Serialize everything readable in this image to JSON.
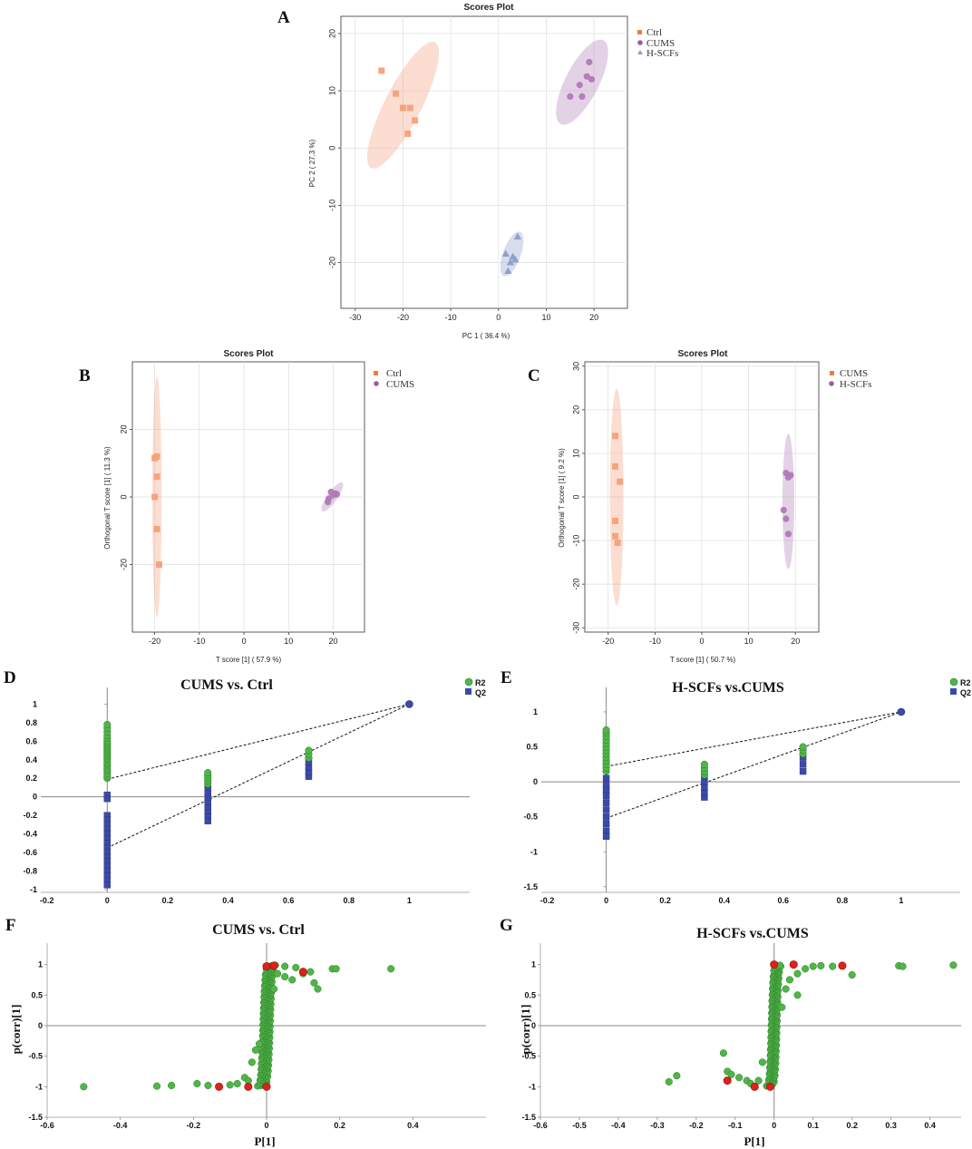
{
  "colors": {
    "ctrl": "#f4a07a",
    "cums": "#b07ab6",
    "hscfs": "#8c9dcc",
    "r2": "#4fb648",
    "q2": "#3b4aa8",
    "highlight": "#e0201b"
  },
  "chart_data": [
    {
      "id": "A",
      "type": "scatter",
      "label": "A",
      "title": "Scores Plot",
      "xlabel": "PC 1 ( 36.4 %)",
      "ylabel": "PC 2 ( 27.3 %)",
      "xlim": [
        -33,
        27
      ],
      "ylim": [
        -28,
        23
      ],
      "xticks": [
        -30,
        -20,
        -10,
        0,
        10,
        20
      ],
      "yticks": [
        -20,
        -10,
        0,
        10,
        20
      ],
      "series": [
        {
          "name": "Ctrl",
          "marker": "square",
          "color": "#f4a07a",
          "x": [
            -24.5,
            -21.5,
            -20.0,
            -18.5,
            -17.5,
            -19.0
          ],
          "y": [
            13.5,
            9.5,
            7.0,
            7.0,
            4.8,
            2.5
          ],
          "ellipse": {
            "cx": -20.0,
            "cy": 7.5,
            "rx": 13.5,
            "ry": 3.5,
            "angle": -63
          }
        },
        {
          "name": "CUMS",
          "marker": "circle",
          "color": "#b07ab6",
          "x": [
            19.0,
            18.5,
            19.5,
            17.0,
            15.0,
            17.5
          ],
          "y": [
            15.0,
            12.5,
            12.0,
            11.0,
            9.0,
            9.0
          ],
          "ellipse": {
            "cx": 17.5,
            "cy": 11.5,
            "rx": 9.0,
            "ry": 3.2,
            "angle": -63
          }
        },
        {
          "name": "H-SCFs",
          "marker": "triangle",
          "color": "#8c9dcc",
          "x": [
            4.0,
            1.5,
            3.0,
            2.5,
            2.0,
            3.5
          ],
          "y": [
            -15.5,
            -18.5,
            -19.0,
            -20.0,
            -21.5,
            -19.5
          ],
          "ellipse": {
            "cx": 2.8,
            "cy": -18.5,
            "rx": 4.5,
            "ry": 1.7,
            "angle": -70
          }
        }
      ]
    },
    {
      "id": "B",
      "type": "scatter",
      "label": "B",
      "title": "Scores Plot",
      "xlabel": "T score [1] ( 57.9 %)",
      "ylabel": "Orthogonal T score [1] ( 11.3 %)",
      "xlim": [
        -25,
        27
      ],
      "ylim": [
        -40,
        40
      ],
      "xticks": [
        -20,
        -10,
        0,
        10,
        20
      ],
      "yticks": [
        -20,
        0,
        20
      ],
      "series": [
        {
          "name": "Ctrl",
          "marker": "square",
          "color": "#f4a07a",
          "x": [
            -19.5,
            -20.0,
            -19.5,
            -20.0,
            -19.5,
            -19.0
          ],
          "y": [
            12.0,
            11.5,
            6.0,
            0.0,
            -9.5,
            -20.0
          ],
          "ellipse": {
            "cx": -19.5,
            "cy": 0.0,
            "rx": 31.0,
            "ry": 1.2,
            "angle": -90
          }
        },
        {
          "name": "CUMS",
          "marker": "circle",
          "color": "#b07ab6",
          "x": [
            19.5,
            20.5,
            20.0,
            19.0,
            18.8,
            20.8
          ],
          "y": [
            1.5,
            1.0,
            0.5,
            -0.5,
            -1.5,
            0.8
          ],
          "ellipse": {
            "cx": 19.8,
            "cy": 0.0,
            "rx": 4.5,
            "ry": 1.3,
            "angle": -55
          }
        }
      ]
    },
    {
      "id": "C",
      "type": "scatter",
      "label": "C",
      "title": "Scores Plot",
      "xlabel": "T score [1] ( 50.7 %)",
      "ylabel": "Orthogonal T score [1] ( 9.2 %)",
      "xlim": [
        -25,
        25
      ],
      "ylim": [
        -31,
        31
      ],
      "xticks": [
        -20,
        -10,
        0,
        10,
        20
      ],
      "yticks": [
        -30,
        -20,
        -10,
        0,
        10,
        20,
        30
      ],
      "series": [
        {
          "name": "CUMS",
          "marker": "square",
          "color": "#f4a07a",
          "x": [
            -18.5,
            -18.5,
            -17.5,
            -18.5,
            -18.5,
            -18.0
          ],
          "y": [
            14.0,
            7.0,
            3.5,
            -5.5,
            -9.0,
            -10.5
          ],
          "ellipse": {
            "cx": -18.2,
            "cy": 0.0,
            "rx": 24.0,
            "ry": 1.5,
            "angle": -90
          }
        },
        {
          "name": "H-SCFs",
          "marker": "circle",
          "color": "#b07ab6",
          "x": [
            18.0,
            19.0,
            18.5,
            17.5,
            18.0,
            18.5
          ],
          "y": [
            5.5,
            5.0,
            4.5,
            -3.0,
            -5.0,
            -8.5
          ],
          "ellipse": {
            "cx": 18.5,
            "cy": -1.0,
            "rx": 15.0,
            "ry": 1.3,
            "angle": -90
          }
        }
      ]
    },
    {
      "id": "D",
      "type": "scatter",
      "label": "D",
      "title": "CUMS vs. Ctrl",
      "xlim": [
        -0.22,
        1.2
      ],
      "ylim": [
        -1.03,
        1.18
      ],
      "xticks": [
        -0.2,
        0,
        0.2,
        0.4,
        0.6,
        0.8,
        1
      ],
      "xtick_labels": [
        "-0.2",
        "0",
        "0.2",
        "0.4",
        "0.6",
        "0.8",
        "1"
      ],
      "yticks": [
        -1,
        -0.8,
        -0.6,
        -0.4,
        -0.2,
        0,
        0.2,
        0.4,
        0.6,
        0.8,
        1
      ],
      "ytick_labels": [
        "-1",
        "-0.8",
        "-0.6",
        "-0.4",
        "-0.2",
        "0",
        "0.2",
        "0.4",
        "0.6",
        "0.8",
        "1"
      ],
      "legend": [
        "R2",
        "Q2"
      ],
      "r2_points": [
        [
          0,
          0.2
        ],
        [
          0,
          0.22
        ],
        [
          0,
          0.25
        ],
        [
          0,
          0.28
        ],
        [
          0,
          0.3
        ],
        [
          0,
          0.33
        ],
        [
          0,
          0.35
        ],
        [
          0,
          0.37
        ],
        [
          0,
          0.4
        ],
        [
          0,
          0.42
        ],
        [
          0,
          0.44
        ],
        [
          0,
          0.46
        ],
        [
          0,
          0.48
        ],
        [
          0,
          0.5
        ],
        [
          0,
          0.52
        ],
        [
          0,
          0.54
        ],
        [
          0,
          0.56
        ],
        [
          0,
          0.58
        ],
        [
          0,
          0.6
        ],
        [
          0,
          0.63
        ],
        [
          0,
          0.66
        ],
        [
          0,
          0.7
        ],
        [
          0,
          0.74
        ],
        [
          0,
          0.78
        ],
        [
          0.333,
          0.14
        ],
        [
          0.333,
          0.17
        ],
        [
          0.333,
          0.2
        ],
        [
          0.333,
          0.23
        ],
        [
          0.333,
          0.26
        ],
        [
          0.667,
          0.42
        ],
        [
          0.667,
          0.46
        ],
        [
          0.667,
          0.5
        ]
      ],
      "q2_points": [
        [
          0,
          0.02
        ],
        [
          0,
          -0.02
        ],
        [
          0,
          -0.2
        ],
        [
          0,
          -0.25
        ],
        [
          0,
          -0.3
        ],
        [
          0,
          -0.35
        ],
        [
          0,
          -0.4
        ],
        [
          0,
          -0.45
        ],
        [
          0,
          -0.5
        ],
        [
          0,
          -0.55
        ],
        [
          0,
          -0.6
        ],
        [
          0,
          -0.65
        ],
        [
          0,
          -0.7
        ],
        [
          0,
          -0.75
        ],
        [
          0,
          -0.8
        ],
        [
          0,
          -0.85
        ],
        [
          0,
          -0.9
        ],
        [
          0,
          -0.95
        ],
        [
          0.333,
          -0.26
        ],
        [
          0.333,
          -0.2
        ],
        [
          0.333,
          -0.15
        ],
        [
          0.333,
          -0.1
        ],
        [
          0.333,
          -0.05
        ],
        [
          0.333,
          0.0
        ],
        [
          0.333,
          0.05
        ],
        [
          0.333,
          0.1
        ],
        [
          0.333,
          0.15
        ],
        [
          0.667,
          0.22
        ],
        [
          0.667,
          0.27
        ],
        [
          0.667,
          0.32
        ],
        [
          0.667,
          0.38
        ]
      ],
      "anchor": [
        1,
        1
      ],
      "r2_line": [
        [
          0,
          0.19
        ],
        [
          1,
          1
        ]
      ],
      "q2_line": [
        [
          0,
          -0.55
        ],
        [
          1,
          1
        ]
      ]
    },
    {
      "id": "E",
      "type": "scatter",
      "label": "E",
      "title": "H-SCFs vs.CUMS",
      "xlim": [
        -0.22,
        1.2
      ],
      "ylim": [
        -1.58,
        1.35
      ],
      "xticks": [
        -0.2,
        0,
        0.2,
        0.4,
        0.6,
        0.8,
        1
      ],
      "xtick_labels": [
        "-0.2",
        "0",
        "0.2",
        "0.4",
        "0.6",
        "0.8",
        "1"
      ],
      "yticks": [
        -1.5,
        -1,
        -0.5,
        0,
        0.5,
        1
      ],
      "ytick_labels": [
        "-1.5",
        "-1",
        "-0.5",
        "0",
        "0.5",
        "1"
      ],
      "legend": [
        "R2",
        "Q2"
      ],
      "r2_points": [
        [
          0,
          0.15
        ],
        [
          0,
          0.2
        ],
        [
          0,
          0.25
        ],
        [
          0,
          0.3
        ],
        [
          0,
          0.35
        ],
        [
          0,
          0.4
        ],
        [
          0,
          0.45
        ],
        [
          0,
          0.5
        ],
        [
          0,
          0.55
        ],
        [
          0,
          0.6
        ],
        [
          0,
          0.65
        ],
        [
          0,
          0.7
        ],
        [
          0,
          0.74
        ],
        [
          0.333,
          0.1
        ],
        [
          0.333,
          0.15
        ],
        [
          0.333,
          0.2
        ],
        [
          0.333,
          0.25
        ],
        [
          0.667,
          0.4
        ],
        [
          0.667,
          0.45
        ],
        [
          0.667,
          0.5
        ]
      ],
      "q2_points": [
        [
          0,
          0.05
        ],
        [
          0,
          -0.05
        ],
        [
          0,
          -0.12
        ],
        [
          0,
          -0.2
        ],
        [
          0,
          -0.3
        ],
        [
          0,
          -0.4
        ],
        [
          0,
          -0.5
        ],
        [
          0,
          -0.6
        ],
        [
          0,
          -0.7
        ],
        [
          0,
          -0.78
        ],
        [
          0.333,
          -0.22
        ],
        [
          0.333,
          -0.15
        ],
        [
          0.333,
          -0.08
        ],
        [
          0.333,
          0.0
        ],
        [
          0.333,
          0.08
        ],
        [
          0.667,
          0.15
        ],
        [
          0.667,
          0.25
        ],
        [
          0.667,
          0.35
        ]
      ],
      "anchor": [
        1,
        1
      ],
      "r2_line": [
        [
          0,
          0.22
        ],
        [
          1,
          1
        ]
      ],
      "q2_line": [
        [
          0,
          -0.52
        ],
        [
          1,
          1
        ]
      ]
    },
    {
      "id": "F",
      "type": "scatter",
      "label": "F",
      "title": "CUMS vs. Ctrl",
      "xlabel": "P[1]",
      "ylabel": "p(corr)[1]",
      "xlim": [
        -0.6,
        0.6
      ],
      "ylim": [
        -1.5,
        1.35
      ],
      "xticks": [
        -0.6,
        -0.4,
        -0.2,
        0,
        0.2,
        0.4
      ],
      "xtick_labels": [
        "-0.6",
        "-0.4",
        "-0.2",
        "0",
        "0.2",
        "0.4"
      ],
      "yticks": [
        -1.5,
        -1,
        -0.5,
        0,
        0.5,
        1
      ],
      "ytick_labels": [
        "-1.5",
        "-1",
        "-0.5",
        "0",
        "0.5",
        "1"
      ],
      "outliers": [
        [
          -0.5,
          -1.0
        ],
        [
          -0.3,
          -0.99
        ],
        [
          -0.26,
          -0.98
        ],
        [
          -0.19,
          -0.95
        ],
        [
          -0.16,
          -0.98
        ],
        [
          -0.1,
          -0.97
        ],
        [
          -0.08,
          -0.95
        ],
        [
          -0.06,
          -0.85
        ],
        [
          -0.04,
          -0.6
        ],
        [
          -0.03,
          -0.4
        ],
        [
          0.02,
          0.6
        ],
        [
          0.03,
          0.85
        ],
        [
          0.05,
          0.8
        ],
        [
          0.07,
          0.75
        ],
        [
          0.1,
          0.85
        ],
        [
          0.12,
          0.88
        ],
        [
          0.14,
          0.6
        ],
        [
          0.18,
          0.93
        ],
        [
          0.19,
          0.93
        ],
        [
          0.34,
          0.93
        ],
        [
          0.05,
          0.97
        ],
        [
          0.08,
          0.95
        ],
        [
          0.13,
          0.7
        ],
        [
          -0.02,
          -0.3
        ],
        [
          -0.05,
          -0.9
        ]
      ],
      "highlights": [
        [
          -0.13,
          -1.0
        ],
        [
          -0.05,
          -1.0
        ],
        [
          0.0,
          0.97
        ],
        [
          0.02,
          0.98
        ],
        [
          0.1,
          0.88
        ],
        [
          0.0,
          -1.0
        ]
      ],
      "curve_n": 240,
      "curve_steep": 180,
      "curve_xmax": 0.04
    },
    {
      "id": "G",
      "type": "scatter",
      "label": "G",
      "title": "H-SCFs vs.CUMS",
      "xlabel": "P[1]",
      "ylabel": "p(corr)[1]",
      "xlim": [
        -0.6,
        0.48
      ],
      "ylim": [
        -1.5,
        1.35
      ],
      "xticks": [
        -0.6,
        -0.5,
        -0.4,
        -0.3,
        -0.2,
        -0.1,
        0,
        0.1,
        0.2,
        0.3,
        0.4
      ],
      "xtick_labels": [
        "-0.6",
        "-0.5",
        "-0.4",
        "-0.3",
        "-0.2",
        "-0.1",
        "0",
        "0.1",
        "0.2",
        "0.3",
        "0.4"
      ],
      "yticks": [
        -1.5,
        -1,
        -0.5,
        0,
        0.5,
        1
      ],
      "ytick_labels": [
        "-1.5",
        "-1",
        "-0.5",
        "0",
        "0.5",
        "1"
      ],
      "outliers": [
        [
          -0.27,
          -0.92
        ],
        [
          -0.25,
          -0.82
        ],
        [
          -0.13,
          -0.45
        ],
        [
          -0.12,
          -0.75
        ],
        [
          -0.11,
          -0.8
        ],
        [
          -0.09,
          -0.85
        ],
        [
          -0.07,
          -0.9
        ],
        [
          -0.06,
          -0.95
        ],
        [
          -0.04,
          -0.9
        ],
        [
          -0.03,
          -0.6
        ],
        [
          0.02,
          0.3
        ],
        [
          0.04,
          0.75
        ],
        [
          0.06,
          0.85
        ],
        [
          0.08,
          0.93
        ],
        [
          0.1,
          0.97
        ],
        [
          0.12,
          0.98
        ],
        [
          0.15,
          0.97
        ],
        [
          0.2,
          0.83
        ],
        [
          0.32,
          0.98
        ],
        [
          0.33,
          0.97
        ],
        [
          0.46,
          0.99
        ],
        [
          0.06,
          0.5
        ],
        [
          0.03,
          0.6
        ]
      ],
      "highlights": [
        [
          -0.12,
          -0.9
        ],
        [
          -0.05,
          -1.0
        ],
        [
          -0.01,
          -1.0
        ],
        [
          0.175,
          0.98
        ],
        [
          0.05,
          1.0
        ],
        [
          0.0,
          1.0
        ]
      ],
      "curve_n": 220,
      "curve_steep": 220,
      "curve_xmax": 0.03
    }
  ]
}
